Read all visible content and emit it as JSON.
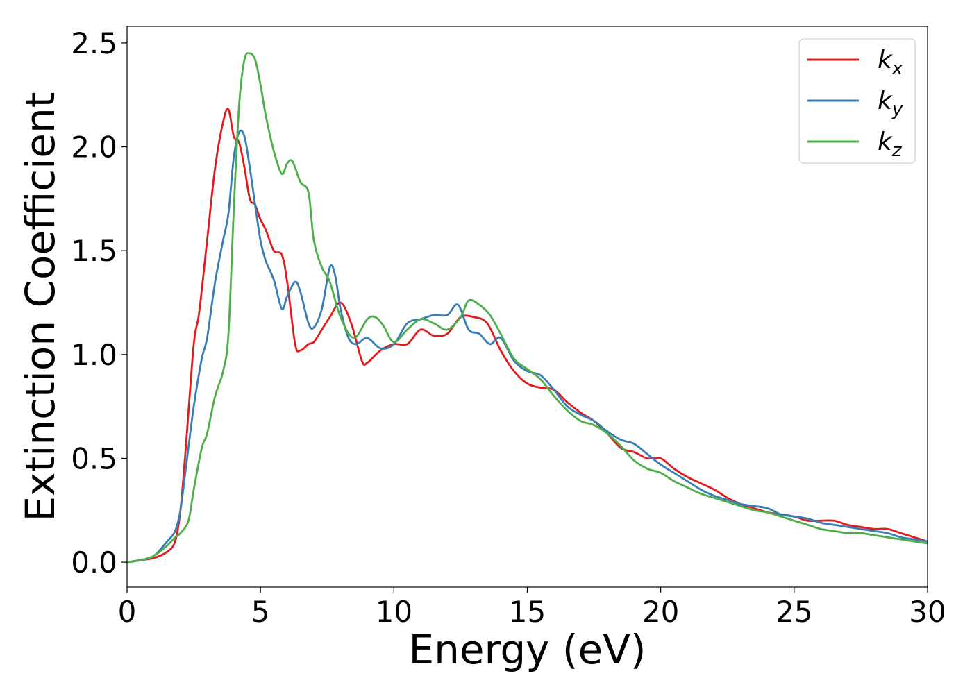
{
  "chart_data": {
    "type": "line",
    "xlabel": "Energy (eV)",
    "ylabel": "Extinction Coefficient",
    "xlim": [
      0,
      30
    ],
    "ylim": [
      -0.12,
      2.58
    ],
    "xticks": [
      0,
      5,
      10,
      15,
      20,
      25,
      30
    ],
    "yticks": [
      0.0,
      0.5,
      1.0,
      1.5,
      2.0,
      2.5
    ],
    "xtick_labels": [
      "0",
      "5",
      "10",
      "15",
      "20",
      "25",
      "30"
    ],
    "ytick_labels": [
      "0.0",
      "0.5",
      "1.0",
      "1.5",
      "2.0",
      "2.5"
    ],
    "grid": false,
    "legend_position": "top-right",
    "series": [
      {
        "name": "kx",
        "label_base": "k",
        "label_sub": "x",
        "color": "#e41a1c",
        "x": [
          0,
          0.5,
          1,
          1.5,
          1.8,
          2.0,
          2.2,
          2.5,
          2.7,
          3.0,
          3.3,
          3.6,
          3.8,
          4.0,
          4.2,
          4.4,
          4.6,
          4.8,
          5.0,
          5.2,
          5.5,
          5.8,
          6.0,
          6.3,
          6.5,
          6.8,
          7.0,
          7.3,
          7.6,
          8.0,
          8.4,
          8.8,
          9.0,
          9.5,
          10.0,
          10.5,
          11.0,
          11.5,
          12.0,
          12.5,
          13.0,
          13.5,
          14.0,
          14.5,
          15.0,
          15.5,
          16.0,
          16.5,
          17.0,
          17.5,
          18.0,
          18.5,
          19.0,
          19.5,
          20.0,
          20.5,
          21.0,
          21.5,
          22.0,
          22.5,
          23.0,
          23.5,
          24.0,
          24.5,
          25.0,
          25.5,
          26.0,
          26.5,
          27.0,
          27.5,
          28.0,
          28.5,
          29.0,
          29.5,
          30.0
        ],
        "y": [
          0.0,
          0.01,
          0.02,
          0.05,
          0.1,
          0.25,
          0.55,
          1.05,
          1.2,
          1.55,
          1.9,
          2.12,
          2.18,
          2.05,
          2.02,
          1.9,
          1.75,
          1.72,
          1.65,
          1.6,
          1.5,
          1.48,
          1.35,
          1.05,
          1.02,
          1.05,
          1.06,
          1.12,
          1.18,
          1.25,
          1.15,
          0.97,
          0.96,
          1.02,
          1.05,
          1.05,
          1.12,
          1.09,
          1.1,
          1.18,
          1.18,
          1.15,
          1.02,
          0.92,
          0.86,
          0.84,
          0.83,
          0.77,
          0.72,
          0.68,
          0.62,
          0.55,
          0.53,
          0.5,
          0.5,
          0.45,
          0.41,
          0.38,
          0.35,
          0.31,
          0.28,
          0.26,
          0.24,
          0.23,
          0.22,
          0.2,
          0.2,
          0.2,
          0.18,
          0.17,
          0.16,
          0.16,
          0.14,
          0.12,
          0.1
        ]
      },
      {
        "name": "ky",
        "label_base": "k",
        "label_sub": "y",
        "color": "#377eb8",
        "x": [
          0,
          0.5,
          1,
          1.5,
          1.8,
          2.0,
          2.2,
          2.5,
          2.8,
          3.0,
          3.3,
          3.6,
          3.8,
          4.0,
          4.2,
          4.4,
          4.6,
          4.8,
          5.0,
          5.2,
          5.5,
          5.8,
          6.0,
          6.3,
          6.5,
          6.8,
          7.0,
          7.3,
          7.6,
          7.8,
          8.0,
          8.3,
          8.6,
          9.0,
          9.5,
          10.0,
          10.5,
          11.0,
          11.5,
          12.0,
          12.4,
          12.8,
          13.2,
          13.6,
          14.0,
          14.5,
          15.0,
          15.5,
          16.0,
          16.5,
          17.0,
          17.5,
          18.0,
          18.5,
          19.0,
          19.5,
          20.0,
          20.5,
          21.0,
          21.5,
          22.0,
          22.5,
          23.0,
          23.5,
          24.0,
          24.5,
          25.0,
          25.5,
          26.0,
          26.5,
          27.0,
          27.5,
          28.0,
          28.5,
          29.0,
          29.5,
          30.0
        ],
        "y": [
          0.0,
          0.01,
          0.03,
          0.1,
          0.15,
          0.25,
          0.45,
          0.75,
          0.98,
          1.08,
          1.35,
          1.55,
          1.68,
          1.95,
          2.07,
          2.05,
          1.9,
          1.72,
          1.55,
          1.45,
          1.36,
          1.22,
          1.28,
          1.35,
          1.3,
          1.15,
          1.13,
          1.22,
          1.42,
          1.38,
          1.22,
          1.08,
          1.05,
          1.08,
          1.03,
          1.05,
          1.15,
          1.17,
          1.19,
          1.19,
          1.24,
          1.12,
          1.1,
          1.05,
          1.08,
          0.97,
          0.92,
          0.9,
          0.83,
          0.75,
          0.71,
          0.68,
          0.63,
          0.59,
          0.57,
          0.52,
          0.47,
          0.43,
          0.39,
          0.35,
          0.32,
          0.3,
          0.28,
          0.27,
          0.26,
          0.23,
          0.22,
          0.21,
          0.19,
          0.18,
          0.17,
          0.16,
          0.15,
          0.14,
          0.12,
          0.11,
          0.1
        ]
      },
      {
        "name": "kz",
        "label_base": "k",
        "label_sub": "z",
        "color": "#4daf4a",
        "x": [
          0,
          0.5,
          1,
          1.5,
          1.8,
          2.0,
          2.3,
          2.5,
          2.8,
          3.0,
          3.3,
          3.6,
          3.8,
          4.0,
          4.2,
          4.4,
          4.6,
          4.8,
          5.0,
          5.2,
          5.5,
          5.8,
          6.0,
          6.2,
          6.5,
          6.8,
          7.0,
          7.3,
          7.6,
          8.0,
          8.5,
          9.0,
          9.3,
          9.6,
          10.0,
          10.5,
          11.0,
          11.5,
          12.0,
          12.5,
          12.8,
          13.2,
          13.6,
          14.0,
          14.5,
          15.0,
          15.5,
          16.0,
          16.5,
          17.0,
          17.5,
          18.0,
          18.5,
          19.0,
          19.5,
          20.0,
          20.5,
          21.0,
          21.5,
          22.0,
          22.5,
          23.0,
          23.5,
          24.0,
          24.5,
          25.0,
          25.5,
          26.0,
          26.5,
          27.0,
          27.5,
          28.0,
          28.5,
          29.0,
          29.5,
          30.0
        ],
        "y": [
          0.0,
          0.01,
          0.03,
          0.08,
          0.12,
          0.14,
          0.2,
          0.35,
          0.55,
          0.62,
          0.8,
          0.92,
          1.1,
          1.7,
          2.2,
          2.42,
          2.45,
          2.42,
          2.3,
          2.15,
          1.98,
          1.87,
          1.92,
          1.93,
          1.83,
          1.78,
          1.55,
          1.42,
          1.35,
          1.18,
          1.08,
          1.17,
          1.18,
          1.14,
          1.06,
          1.12,
          1.17,
          1.15,
          1.12,
          1.18,
          1.26,
          1.24,
          1.19,
          1.1,
          0.98,
          0.93,
          0.88,
          0.8,
          0.73,
          0.68,
          0.66,
          0.62,
          0.56,
          0.49,
          0.45,
          0.43,
          0.39,
          0.36,
          0.33,
          0.31,
          0.29,
          0.27,
          0.25,
          0.24,
          0.22,
          0.2,
          0.18,
          0.16,
          0.15,
          0.14,
          0.14,
          0.13,
          0.12,
          0.11,
          0.1,
          0.09
        ]
      }
    ]
  }
}
